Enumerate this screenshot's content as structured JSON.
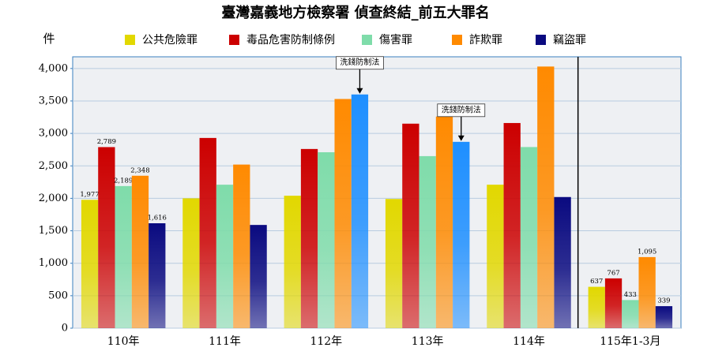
{
  "chart_data": {
    "type": "bar",
    "title": "臺灣嘉義地方檢察署 偵查終結_前五大罪名",
    "y_label": "件",
    "categories": [
      "110年",
      "111年",
      "112年",
      "113年",
      "114年",
      "115年1-3月"
    ],
    "series": [
      {
        "name": "公共危險罪",
        "color": "#e2d800",
        "values": [
          1977,
          2000,
          2040,
          1990,
          2210,
          637
        ],
        "value_labels": [
          "1,977",
          null,
          null,
          null,
          null,
          "637"
        ]
      },
      {
        "name": "毒品危害防制條例",
        "color": "#cc0000",
        "values": [
          2789,
          2930,
          2760,
          3150,
          3160,
          767
        ],
        "value_labels": [
          "2,789",
          null,
          null,
          null,
          null,
          "767"
        ]
      },
      {
        "name": "傷害罪",
        "color": "#7fdcaa",
        "values": [
          2189,
          2210,
          2710,
          2650,
          2790,
          433
        ],
        "value_labels": [
          "2,189",
          null,
          null,
          null,
          null,
          "433"
        ]
      },
      {
        "name": "詐欺罪",
        "color": "#ff8a00",
        "values": [
          2348,
          2520,
          3530,
          3260,
          4030,
          1095
        ],
        "value_labels": [
          "2,348",
          null,
          null,
          null,
          null,
          "1,095"
        ]
      },
      {
        "name": "竊盜罪",
        "color": "#0a0a80",
        "colors": [
          "#0a0a80",
          "#0a0a80",
          "#1e8fff",
          "#1e8fff",
          "#0a0a80",
          "#0a0a80"
        ],
        "values": [
          1616,
          1590,
          3600,
          2870,
          2020,
          339
        ],
        "value_labels": [
          "1,616",
          null,
          null,
          null,
          null,
          "339"
        ]
      }
    ],
    "annotations": [
      {
        "text": "洗錢防制法",
        "x": "112年"
      },
      {
        "text": "洗錢防制法",
        "x": "113年"
      }
    ],
    "ylim": [
      0,
      4180
    ],
    "yticks": [
      0,
      500,
      {
        "value": 1000,
        "label": "1,000"
      },
      {
        "value": 1500,
        "label": "1,500"
      },
      {
        "value": 2000,
        "label": "2,000"
      },
      {
        "value": 2500,
        "label": "2,500"
      },
      {
        "value": 3000,
        "label": "3,000"
      },
      {
        "value": 3500,
        "label": "3,500"
      },
      {
        "value": 4000,
        "label": "4,000"
      }
    ],
    "grid": true
  }
}
